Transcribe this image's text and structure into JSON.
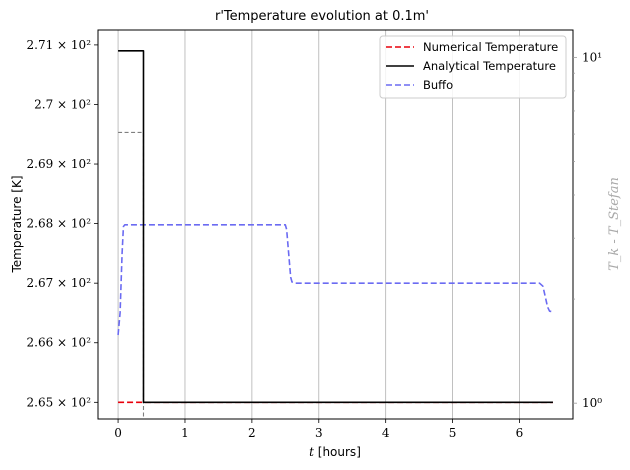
{
  "chart_data": {
    "type": "line",
    "title": "r'Temperature evolution at 0.1m'",
    "xlabel": "t [hours]",
    "ylabel": "Temperature [K]",
    "y2label": "T_k - T_Stefan",
    "xlim": [
      -0.3,
      6.8
    ],
    "ylim": [
      264.72,
      271.25
    ],
    "y2lim": [
      0.9,
      12
    ],
    "y2scale": "log",
    "grid": "vertical",
    "legend_position": "top-right",
    "x_ticks": [
      0,
      1,
      2,
      3,
      4,
      5,
      6
    ],
    "x_tick_labels": [
      "0",
      "1",
      "2",
      "3",
      "4",
      "5",
      "6"
    ],
    "y_ticks": [
      265,
      266,
      267,
      268,
      269,
      270,
      271
    ],
    "y_tick_labels": [
      "2.65 × 10²",
      "2.66 × 10²",
      "2.67 × 10²",
      "2.68 × 10²",
      "2.69 × 10²",
      "2.7 × 10²",
      "2.71 × 10²"
    ],
    "y2_ticks": [
      1,
      10
    ],
    "y2_tick_labels": [
      "10⁰",
      "10¹"
    ],
    "series": [
      {
        "name": "Numerical Temperature",
        "axis": "left",
        "color": "#e8000b",
        "dash": "dashed",
        "x": [
          0,
          0.38,
          0.4,
          6.5
        ],
        "y": [
          265.0,
          265.0,
          265.0,
          265.0
        ]
      },
      {
        "name": "Analytical Temperature",
        "axis": "left",
        "color": "#000000",
        "dash": "solid",
        "x": [
          0,
          0.38,
          0.38,
          0.4,
          6.5
        ],
        "y": [
          270.9,
          270.9,
          265.0,
          265.0,
          265.0
        ]
      },
      {
        "name": "Buffo",
        "axis": "left",
        "color": "#6b6bf2",
        "dash": "dashed",
        "x": [
          0,
          0.03,
          0.06,
          0.08,
          0.1,
          0.5,
          1.0,
          2.0,
          2.5,
          2.52,
          2.55,
          2.58,
          2.6,
          2.65,
          3.0,
          4.0,
          5.0,
          6.0,
          6.3,
          6.35,
          6.38,
          6.42,
          6.45,
          6.5
        ],
        "y": [
          266.13,
          266.5,
          267.5,
          267.95,
          267.98,
          267.98,
          267.98,
          267.98,
          267.98,
          267.9,
          267.5,
          267.1,
          267.02,
          267.0,
          267.0,
          267.0,
          267.0,
          267.0,
          267.0,
          266.95,
          266.8,
          266.6,
          266.53,
          266.52
        ]
      },
      {
        "name": "",
        "axis": "left",
        "color": "#7f7f7f",
        "dash": "dashed",
        "x": [
          0,
          0.38,
          0.38
        ],
        "y": [
          269.53,
          269.53,
          264.72
        ]
      }
    ]
  }
}
